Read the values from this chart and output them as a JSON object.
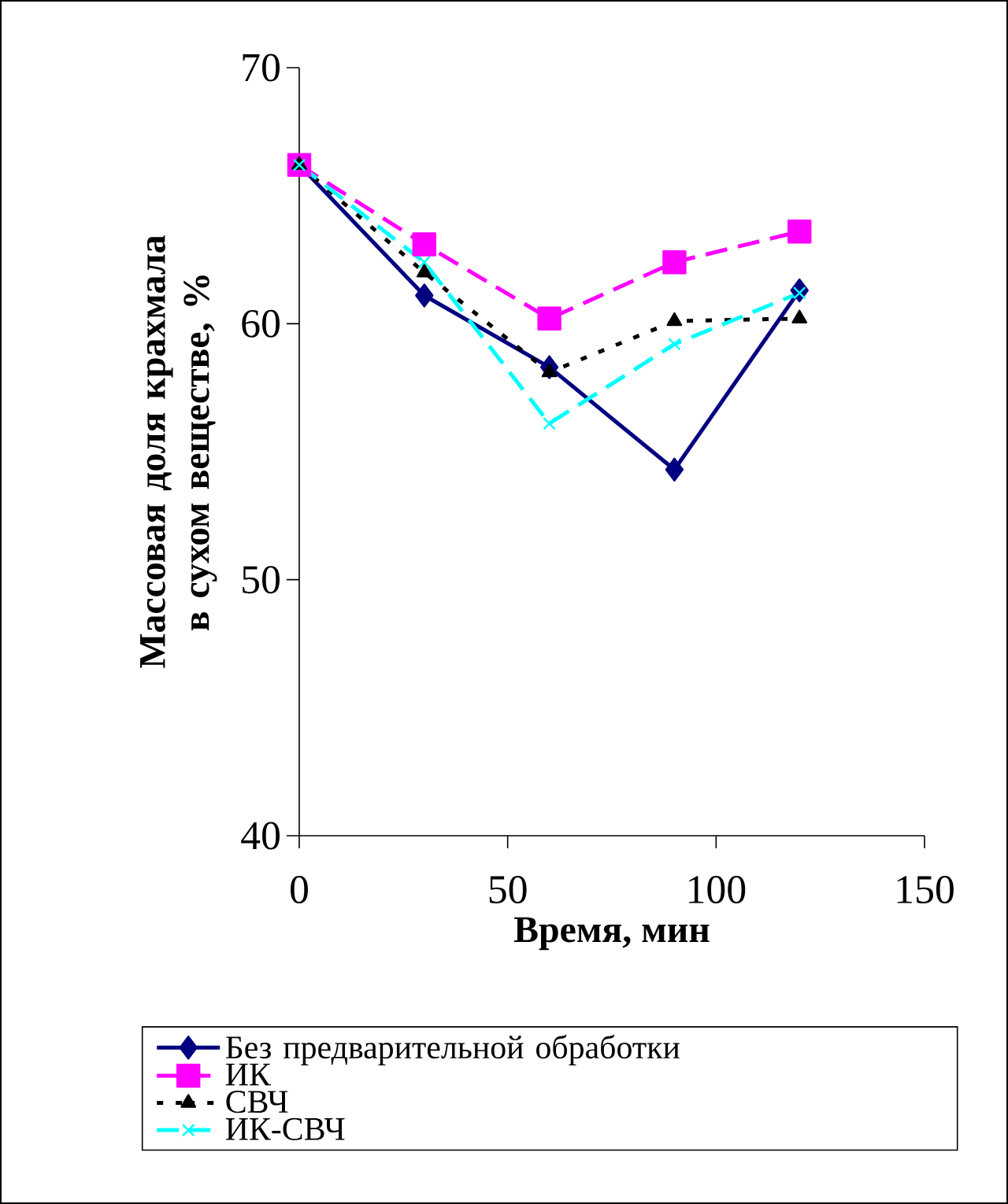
{
  "chart_data": {
    "type": "line",
    "xlabel": "Время, мин",
    "ylabel": "Массовая доля крахмала в сухом веществе, %",
    "x": [
      0,
      30,
      60,
      90,
      120
    ],
    "series": [
      {
        "name": "Без предварительной обработки",
        "color": "#000080",
        "marker": "diamond",
        "line_style": "solid",
        "values": [
          66.2,
          61.1,
          58.3,
          54.3,
          61.3
        ]
      },
      {
        "name": "ИК",
        "color": "#ff00ff",
        "marker": "square",
        "line_style": "dashed",
        "values": [
          66.2,
          63.1,
          60.2,
          62.4,
          63.6
        ]
      },
      {
        "name": "СВЧ",
        "color": "#000000",
        "marker": "triangle",
        "line_style": "dotted",
        "values": [
          66.2,
          62.0,
          58.1,
          60.1,
          60.2
        ]
      },
      {
        "name": "ИК-СВЧ",
        "color": "#00ffff",
        "marker": "cross",
        "line_style": "dashed",
        "values": [
          66.2,
          62.4,
          56.1,
          59.2,
          61.2
        ]
      }
    ],
    "xlim": [
      0,
      150
    ],
    "ylim": [
      40,
      70
    ],
    "xticks": [
      0,
      50,
      100,
      150
    ],
    "yticks": [
      40,
      50,
      60,
      70
    ],
    "grid": false,
    "legend": "bottom"
  }
}
